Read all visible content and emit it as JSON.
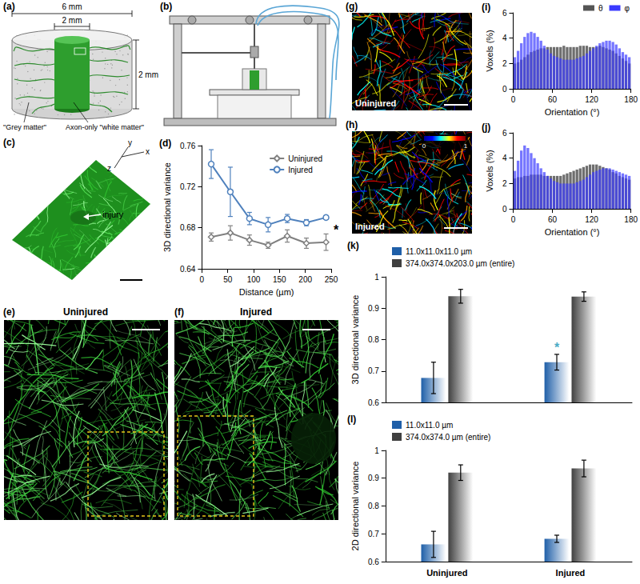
{
  "panels": {
    "a": {
      "label": "(a)",
      "outer_diameter": "6 mm",
      "inner_diameter": "2 mm",
      "height": "2 mm",
      "outer_region": "\"Grey matter\"",
      "inner_region": "Axon-only \"white matter\""
    },
    "b": {
      "label": "(b)"
    },
    "c": {
      "label": "(c)",
      "axes": [
        "x",
        "y",
        "z"
      ],
      "annotation": "injury"
    },
    "e": {
      "label": "(e)",
      "title": "Uninjured"
    },
    "f": {
      "label": "(f)",
      "title": "Injured"
    },
    "g": {
      "label": "(g)",
      "caption": "Uninjured"
    },
    "h": {
      "label": "(h)",
      "caption": "Injured",
      "colorbar_ticks": [
        0,
        1
      ]
    }
  },
  "chart_data": [
    {
      "label": "(d)",
      "type": "line",
      "x": [
        18,
        55,
        92,
        128,
        165,
        202,
        240
      ],
      "series": [
        {
          "name": "Uninjured",
          "color": "#808080",
          "marker": "diamond",
          "values": [
            0.671,
            0.675,
            0.668,
            0.663,
            0.672,
            0.665,
            0.666
          ],
          "errors": [
            0.004,
            0.007,
            0.005,
            0.003,
            0.006,
            0.005,
            0.008
          ]
        },
        {
          "name": "Injured",
          "color": "#4f81bd",
          "marker": "circle",
          "values": [
            0.742,
            0.715,
            0.689,
            0.683,
            0.689,
            0.685,
            0.69
          ],
          "errors": [
            0.014,
            0.024,
            0.006,
            0.007,
            0.004,
            0.003,
            0.002
          ]
        }
      ],
      "xlabel": "Distance (µm)",
      "ylabel": "3D directional variance",
      "xlim": [
        0,
        250
      ],
      "ylim": [
        0.64,
        0.76
      ],
      "xticks": [
        0,
        50,
        100,
        150,
        200,
        250
      ],
      "yticks": [
        0.64,
        0.68,
        0.72,
        0.76
      ],
      "legend": "upper right",
      "grid": false,
      "annotations": [
        {
          "text": "*",
          "x": 250,
          "y": 0.678
        }
      ]
    },
    {
      "label": "(i)",
      "type": "histogram",
      "bins": [
        0,
        5,
        10,
        15,
        20,
        25,
        30,
        35,
        40,
        45,
        50,
        55,
        60,
        65,
        70,
        75,
        80,
        85,
        90,
        95,
        100,
        105,
        110,
        115,
        120,
        125,
        130,
        135,
        140,
        145,
        150,
        155,
        160,
        165,
        170,
        175,
        180
      ],
      "series": [
        {
          "name": "θ",
          "color": "#555555",
          "values": [
            2.0,
            2.1,
            2.3,
            2.5,
            2.7,
            2.9,
            3.0,
            3.1,
            3.2,
            3.2,
            3.3,
            3.3,
            3.3,
            3.3,
            3.3,
            3.4,
            3.3,
            3.3,
            3.3,
            3.3,
            3.4,
            3.4,
            3.4,
            3.3,
            3.3,
            3.3,
            3.4,
            3.3,
            3.2,
            3.1,
            3.0,
            2.8,
            2.6,
            2.4,
            2.2,
            2.0
          ]
        },
        {
          "name": "φ",
          "color": "#3a3aff",
          "values": [
            2.5,
            3.0,
            3.6,
            4.1,
            4.4,
            4.5,
            4.4,
            4.1,
            3.8,
            3.4,
            3.1,
            2.8,
            2.6,
            2.5,
            2.4,
            2.3,
            2.3,
            2.3,
            2.3,
            2.4,
            2.5,
            2.6,
            2.8,
            3.0,
            3.2,
            3.4,
            3.6,
            3.7,
            3.8,
            3.8,
            3.7,
            3.5,
            3.2,
            2.9,
            2.7,
            2.5
          ]
        }
      ],
      "xlabel": "Orientation (°)",
      "ylabel": "Voxels (%)",
      "xlim": [
        0,
        180
      ],
      "ylim": [
        0,
        6
      ],
      "xticks": [
        0,
        60,
        120,
        180
      ],
      "yticks": [
        0,
        2,
        4,
        6
      ],
      "legend": "upper right",
      "grid": false
    },
    {
      "label": "(j)",
      "type": "histogram",
      "bins": [
        0,
        5,
        10,
        15,
        20,
        25,
        30,
        35,
        40,
        45,
        50,
        55,
        60,
        65,
        70,
        75,
        80,
        85,
        90,
        95,
        100,
        105,
        110,
        115,
        120,
        125,
        130,
        135,
        140,
        145,
        150,
        155,
        160,
        165,
        170,
        175,
        180
      ],
      "series": [
        {
          "color": "#555555",
          "values": [
            2.4,
            2.5,
            2.5,
            2.6,
            2.6,
            2.7,
            2.7,
            2.7,
            2.7,
            2.6,
            2.6,
            2.6,
            2.6,
            2.6,
            2.6,
            2.7,
            2.8,
            2.9,
            3.0,
            3.1,
            3.2,
            3.3,
            3.4,
            3.5,
            3.5,
            3.5,
            3.4,
            3.3,
            3.2,
            3.1,
            2.9,
            2.8,
            2.6,
            2.5,
            2.4,
            2.3
          ]
        },
        {
          "color": "#3a3aff",
          "values": [
            3.0,
            3.8,
            4.6,
            5.0,
            4.8,
            4.4,
            4.0,
            3.6,
            3.2,
            2.9,
            2.6,
            2.4,
            2.2,
            2.1,
            2.0,
            2.0,
            2.0,
            2.0,
            2.0,
            2.1,
            2.2,
            2.3,
            2.5,
            2.7,
            2.9,
            3.0,
            3.1,
            3.2,
            3.2,
            3.2,
            3.1,
            3.0,
            2.9,
            2.8,
            2.7,
            2.6
          ]
        }
      ],
      "xlabel": "Orientation (°)",
      "ylabel": "Voxels (%)",
      "xlim": [
        0,
        180
      ],
      "ylim": [
        0,
        6
      ],
      "xticks": [
        0,
        60,
        120,
        180
      ],
      "yticks": [
        0,
        2,
        4,
        6
      ],
      "grid": false
    },
    {
      "label": "(k)",
      "type": "bar",
      "categories": [
        "Uninjured",
        "Injured"
      ],
      "series": [
        {
          "name": "11.0x11.0x11.0 µm",
          "color": "#1f5fa8",
          "values": [
            0.678,
            0.728
          ],
          "errors": [
            0.05,
            0.025
          ]
        },
        {
          "name": "374.0x374.0x203.0 µm (entire)",
          "color": "#404040",
          "values": [
            0.938,
            0.937
          ],
          "errors": [
            0.022,
            0.015
          ]
        }
      ],
      "ylabel": "3D directional variance",
      "ylim": [
        0.6,
        1
      ],
      "yticks": [
        0.6,
        0.7,
        0.8,
        0.9,
        1
      ],
      "legend": "upper left",
      "grid": false,
      "tick_labels": "y",
      "annotations": [
        {
          "text": "*",
          "x": "Injured",
          "series": "11.0x11.0x11.0 µm",
          "y": 0.775,
          "color": "#4bacc6"
        }
      ]
    },
    {
      "label": "(l)",
      "type": "bar",
      "categories": [
        "Uninjured",
        "Injured"
      ],
      "series": [
        {
          "name": "11.0x11.0 µm",
          "color": "#1f5fa8",
          "values": [
            0.662,
            0.682
          ],
          "errors": [
            0.047,
            0.013
          ]
        },
        {
          "name": "374.0x374.0 µm (entire)",
          "color": "#404040",
          "values": [
            0.92,
            0.935
          ],
          "errors": [
            0.028,
            0.03
          ]
        }
      ],
      "ylabel": "2D directional variance",
      "ylim": [
        0.6,
        1
      ],
      "yticks": [
        0.6,
        0.7,
        0.8,
        0.9,
        1
      ],
      "legend": "upper left",
      "grid": false
    }
  ]
}
